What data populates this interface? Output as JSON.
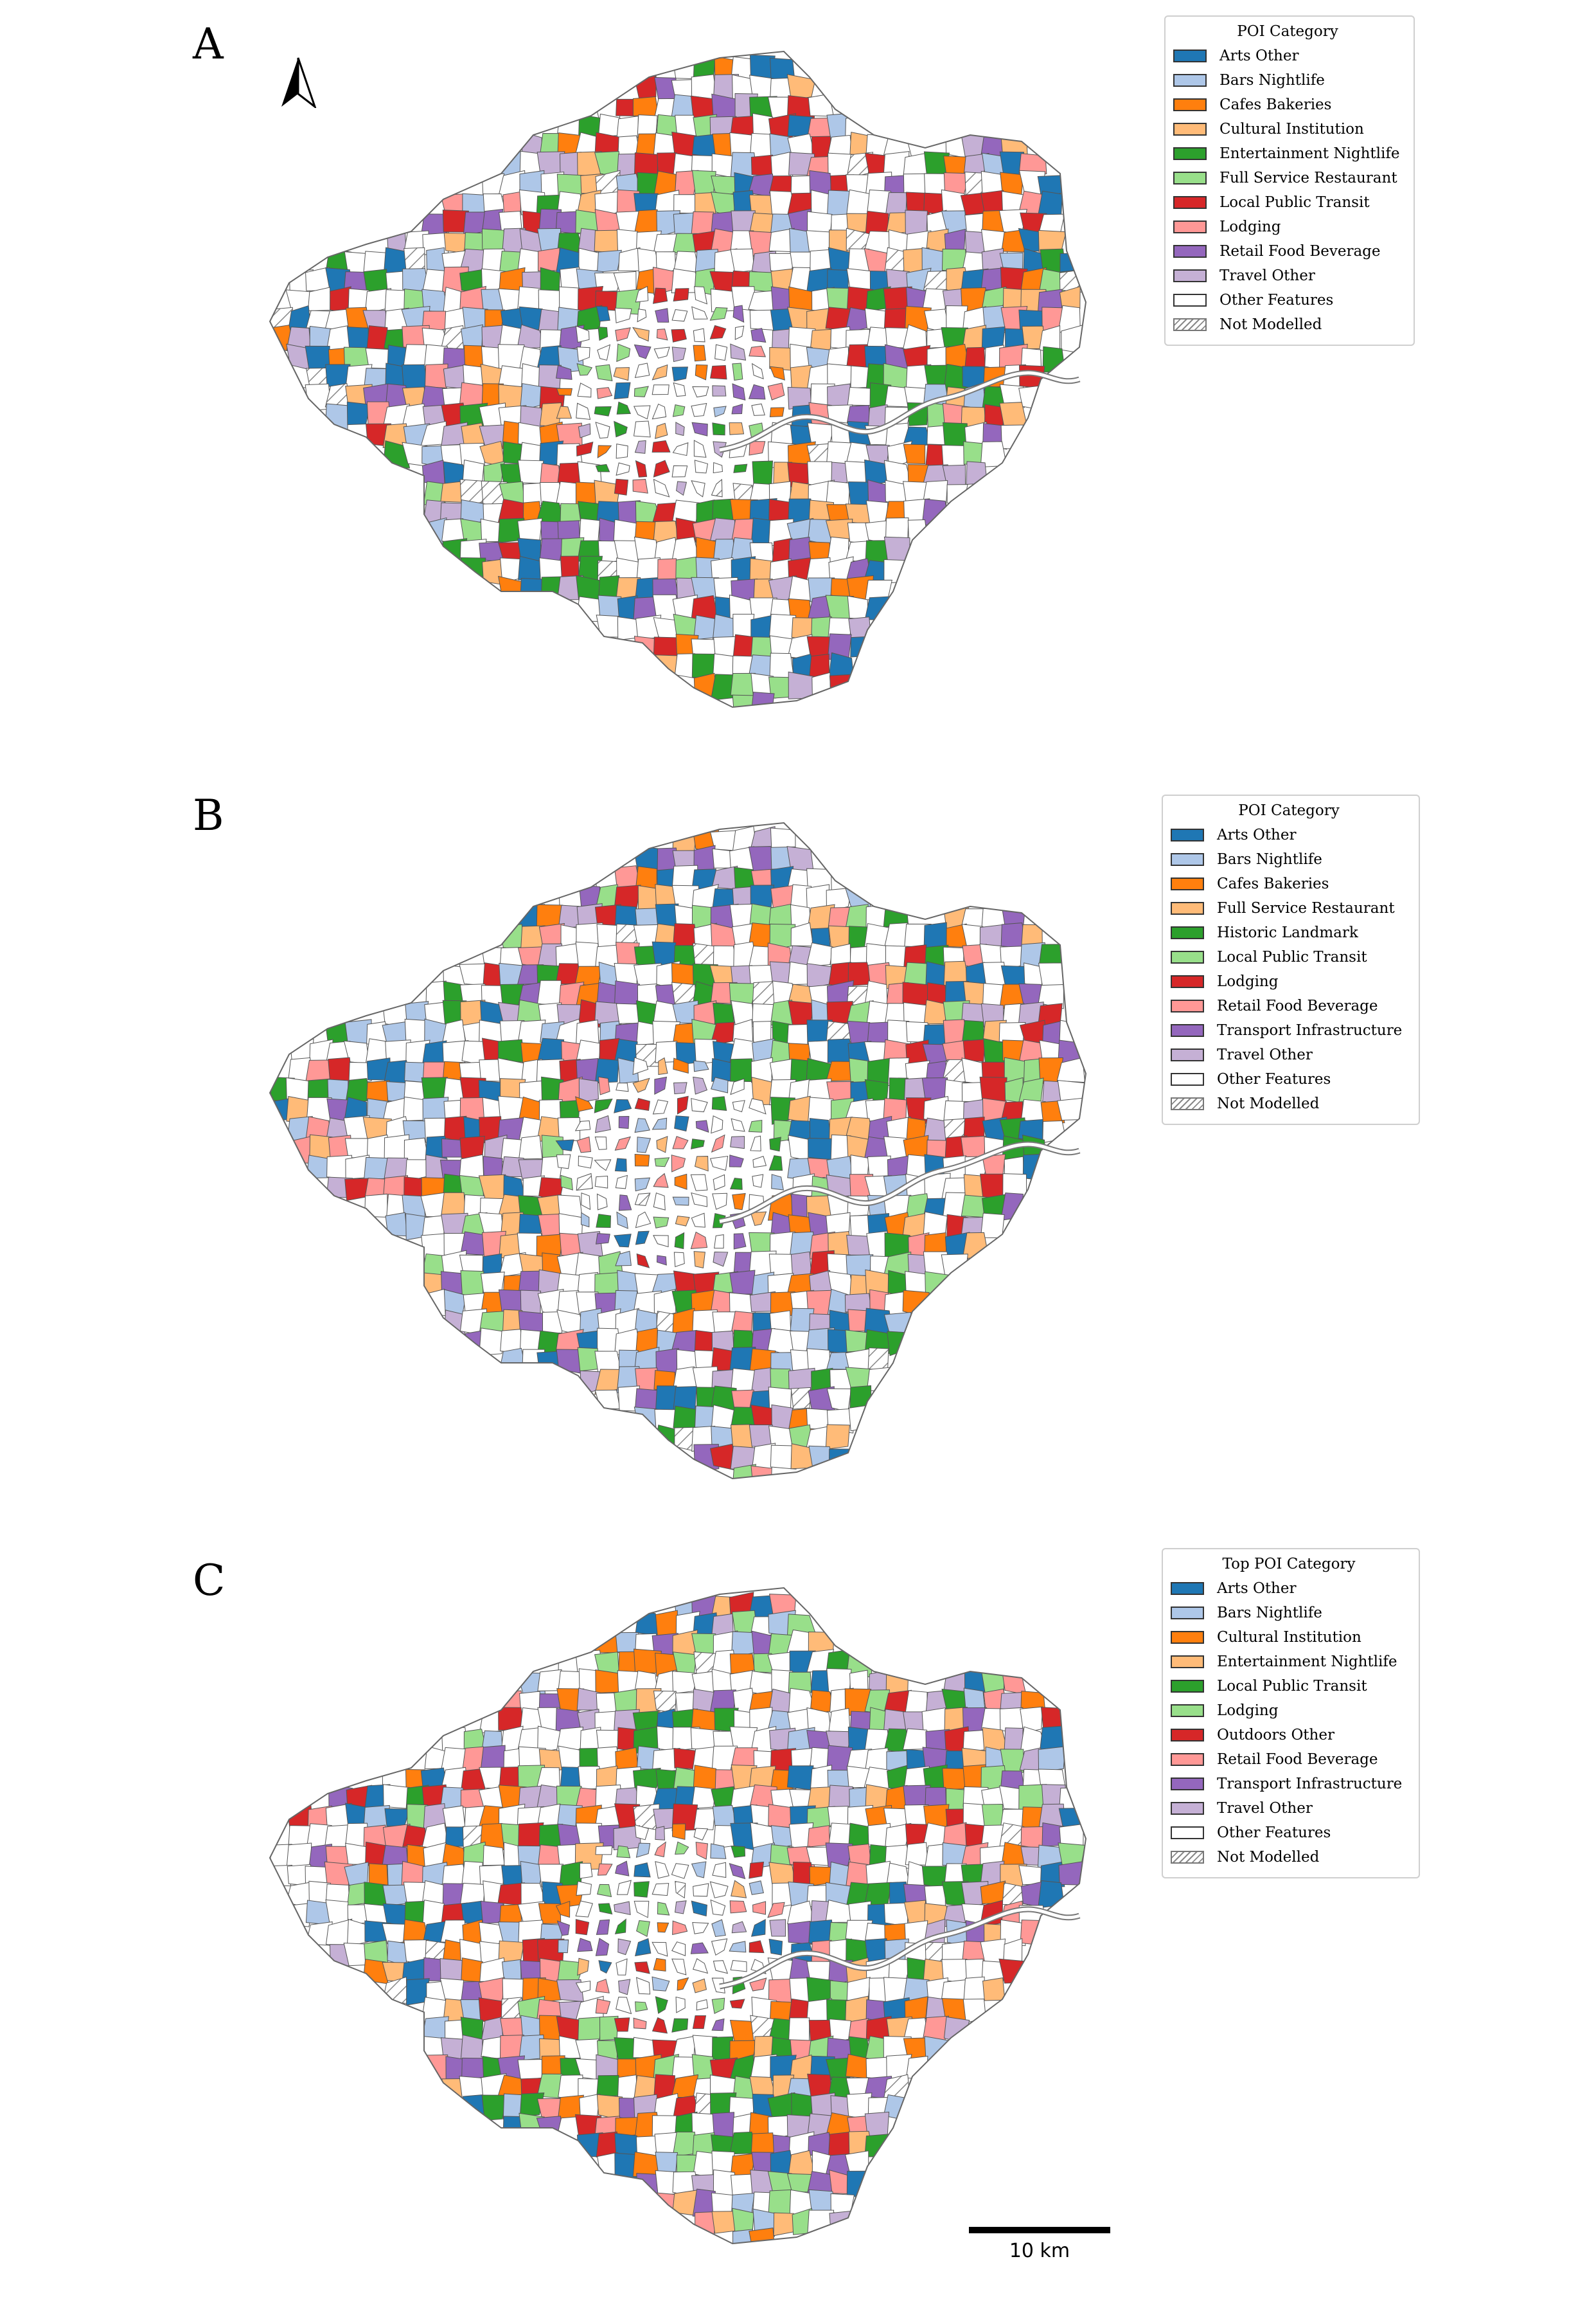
{
  "colors": {
    "arts_other": "#1f77b4",
    "bars_nightlife": "#aec7e8",
    "cafes_bakeries": "#ff7f0e",
    "light_orange": "#ffbb78",
    "entertainment_nightlife": "#2ca02c",
    "light_green": "#98df8a",
    "red": "#d62728",
    "pink": "#ff9896",
    "purple": "#9467bd",
    "lavender": "#c5b0d5",
    "other_features": "#ffffff",
    "not_modelled": "hatch"
  },
  "north_arrow": {
    "icon": "north-arrow-icon"
  },
  "scale_bar": {
    "label": "10 km"
  },
  "panels": [
    {
      "letter": "A",
      "legend": {
        "title": "POI Category",
        "items": [
          {
            "label": "Arts Other",
            "color": "#1f77b4"
          },
          {
            "label": "Bars Nightlife",
            "color": "#aec7e8"
          },
          {
            "label": "Cafes Bakeries",
            "color": "#ff7f0e"
          },
          {
            "label": "Cultural Institution",
            "color": "#ffbb78"
          },
          {
            "label": "Entertainment Nightlife",
            "color": "#2ca02c"
          },
          {
            "label": "Full Service Restaurant",
            "color": "#98df8a"
          },
          {
            "label": "Local Public Transit",
            "color": "#d62728"
          },
          {
            "label": "Lodging",
            "color": "#ff9896"
          },
          {
            "label": "Retail Food Beverage",
            "color": "#9467bd"
          },
          {
            "label": "Travel Other",
            "color": "#c5b0d5"
          },
          {
            "label": "Other Features",
            "color": "#ffffff"
          },
          {
            "label": "Not Modelled",
            "color": "hatch"
          }
        ]
      }
    },
    {
      "letter": "B",
      "legend": {
        "title": "POI Category",
        "items": [
          {
            "label": "Arts Other",
            "color": "#1f77b4"
          },
          {
            "label": "Bars Nightlife",
            "color": "#aec7e8"
          },
          {
            "label": "Cafes Bakeries",
            "color": "#ff7f0e"
          },
          {
            "label": "Full Service Restaurant",
            "color": "#ffbb78"
          },
          {
            "label": "Historic Landmark",
            "color": "#2ca02c"
          },
          {
            "label": "Local Public Transit",
            "color": "#98df8a"
          },
          {
            "label": "Lodging",
            "color": "#d62728"
          },
          {
            "label": "Retail Food Beverage",
            "color": "#ff9896"
          },
          {
            "label": "Transport Infrastructure",
            "color": "#9467bd"
          },
          {
            "label": "Travel Other",
            "color": "#c5b0d5"
          },
          {
            "label": "Other Features",
            "color": "#ffffff"
          },
          {
            "label": "Not Modelled",
            "color": "hatch"
          }
        ]
      }
    },
    {
      "letter": "C",
      "legend": {
        "title": "Top POI Category",
        "items": [
          {
            "label": "Arts Other",
            "color": "#1f77b4"
          },
          {
            "label": "Bars Nightlife",
            "color": "#aec7e8"
          },
          {
            "label": "Cultural Institution",
            "color": "#ff7f0e"
          },
          {
            "label": "Entertainment Nightlife",
            "color": "#ffbb78"
          },
          {
            "label": "Local Public Transit",
            "color": "#2ca02c"
          },
          {
            "label": "Lodging",
            "color": "#98df8a"
          },
          {
            "label": "Outdoors Other",
            "color": "#d62728"
          },
          {
            "label": "Retail Food Beverage",
            "color": "#ff9896"
          },
          {
            "label": "Transport Infrastructure",
            "color": "#9467bd"
          },
          {
            "label": "Travel Other",
            "color": "#c5b0d5"
          },
          {
            "label": "Other Features",
            "color": "#ffffff"
          },
          {
            "label": "Not Modelled",
            "color": "hatch"
          }
        ]
      }
    }
  ]
}
